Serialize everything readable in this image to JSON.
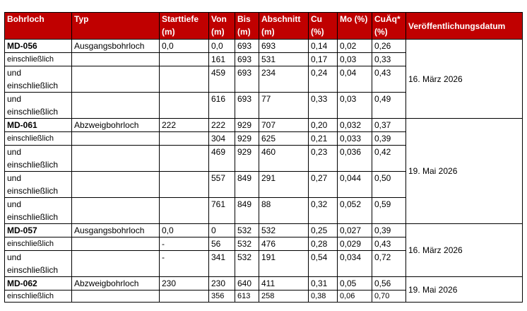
{
  "headers": {
    "bohrloch": "Bohrloch",
    "typ": "Typ",
    "starttiefe": "Starttiefe (m)",
    "von": "Von (m)",
    "bis": "Bis (m)",
    "abschnitt": "Abschnitt (m)",
    "cu": "Cu (%)",
    "mo": "Mo (%)",
    "cuaq": "CuÄq* (%)",
    "datum": "Veröffentlichungsdatum"
  },
  "groups": [
    {
      "date": "16. März 2026",
      "rows": [
        {
          "bohrloch": "MD-056",
          "bold": true,
          "typ": "Ausgangsbohrloch",
          "start": "0,0",
          "von": "0,0",
          "bis": "693",
          "abschnitt": "693",
          "cu": "0,14",
          "mo": "0,02",
          "cuaq": "0,26"
        },
        {
          "bohrloch": "einschließlich",
          "typ": "",
          "start": "",
          "von": "161",
          "bis": "693",
          "abschnitt": "531",
          "cu": "0,17",
          "mo": "0,03",
          "cuaq": "0,33"
        },
        {
          "bohrloch": "und einschließlich",
          "typ": "",
          "start": "",
          "von": "459",
          "bis": "693",
          "abschnitt": "234",
          "cu": "0,24",
          "mo": "0,04",
          "cuaq": "0,43"
        },
        {
          "bohrloch": "und einschließlich",
          "typ": "",
          "start": "",
          "von": "616",
          "bis": "693",
          "abschnitt": "77",
          "cu": "0,33",
          "mo": "0,03",
          "cuaq": "0,49"
        }
      ]
    },
    {
      "date": "19. Mai 2026",
      "rows": [
        {
          "bohrloch": "MD-061",
          "bold": true,
          "typ": "Abzweigbohrloch",
          "start": "222",
          "von": "222",
          "bis": "929",
          "abschnitt": "707",
          "cu": "0,20",
          "mo": "0,032",
          "cuaq": "0,37"
        },
        {
          "bohrloch": "einschließlich",
          "typ": "",
          "start": "",
          "von": "304",
          "bis": "929",
          "abschnitt": "625",
          "cu": "0,21",
          "mo": "0,033",
          "cuaq": "0,39"
        },
        {
          "bohrloch": "und einschließlich",
          "typ": "",
          "start": "",
          "von": "469",
          "bis": "929",
          "abschnitt": "460",
          "cu": "0,23",
          "mo": "0,036",
          "cuaq": "0,42"
        },
        {
          "bohrloch": "und einschließlich",
          "typ": "",
          "start": "",
          "von": "557",
          "bis": "849",
          "abschnitt": "291",
          "cu": "0,27",
          "mo": "0,044",
          "cuaq": "0,50"
        },
        {
          "bohrloch": "und einschließlich",
          "typ": "",
          "start": "",
          "von": "761",
          "bis": "849",
          "abschnitt": "88",
          "cu": "0,32",
          "mo": "0,052",
          "cuaq": "0,59"
        }
      ]
    },
    {
      "date": "16. März 2026",
      "rows": [
        {
          "bohrloch": "MD-057",
          "bold": true,
          "typ": "Ausgangsbohrloch",
          "start": "0,0",
          "von": "0",
          "bis": "532",
          "abschnitt": "532",
          "cu": "0,25",
          "mo": "0,027",
          "cuaq": "0,39"
        },
        {
          "bohrloch": "einschließlich",
          "typ": "",
          "start": "-",
          "von": "56",
          "bis": "532",
          "abschnitt": "476",
          "cu": "0,28",
          "mo": "0,029",
          "cuaq": "0,43"
        },
        {
          "bohrloch": "und einschließlich",
          "typ": "",
          "start": "-",
          "von": "341",
          "bis": "532",
          "abschnitt": "191",
          "cu": "0,54",
          "mo": "0,034",
          "cuaq": "0,72"
        }
      ]
    },
    {
      "date": "19. Mai 2026",
      "rows": [
        {
          "bohrloch": "MD-062",
          "bold": true,
          "typ": "Abzweigbohrloch",
          "start": "230",
          "von": "230",
          "bis": "640",
          "abschnitt": "411",
          "cu": "0,31",
          "mo": "0,05",
          "cuaq": "0,56"
        },
        {
          "bohrloch": "einschließlich",
          "typ": "",
          "start": "",
          "von": "356",
          "bis": "613",
          "abschnitt": "258",
          "cu": "0,38",
          "mo": "0,06",
          "cuaq": "0,70"
        }
      ]
    }
  ]
}
